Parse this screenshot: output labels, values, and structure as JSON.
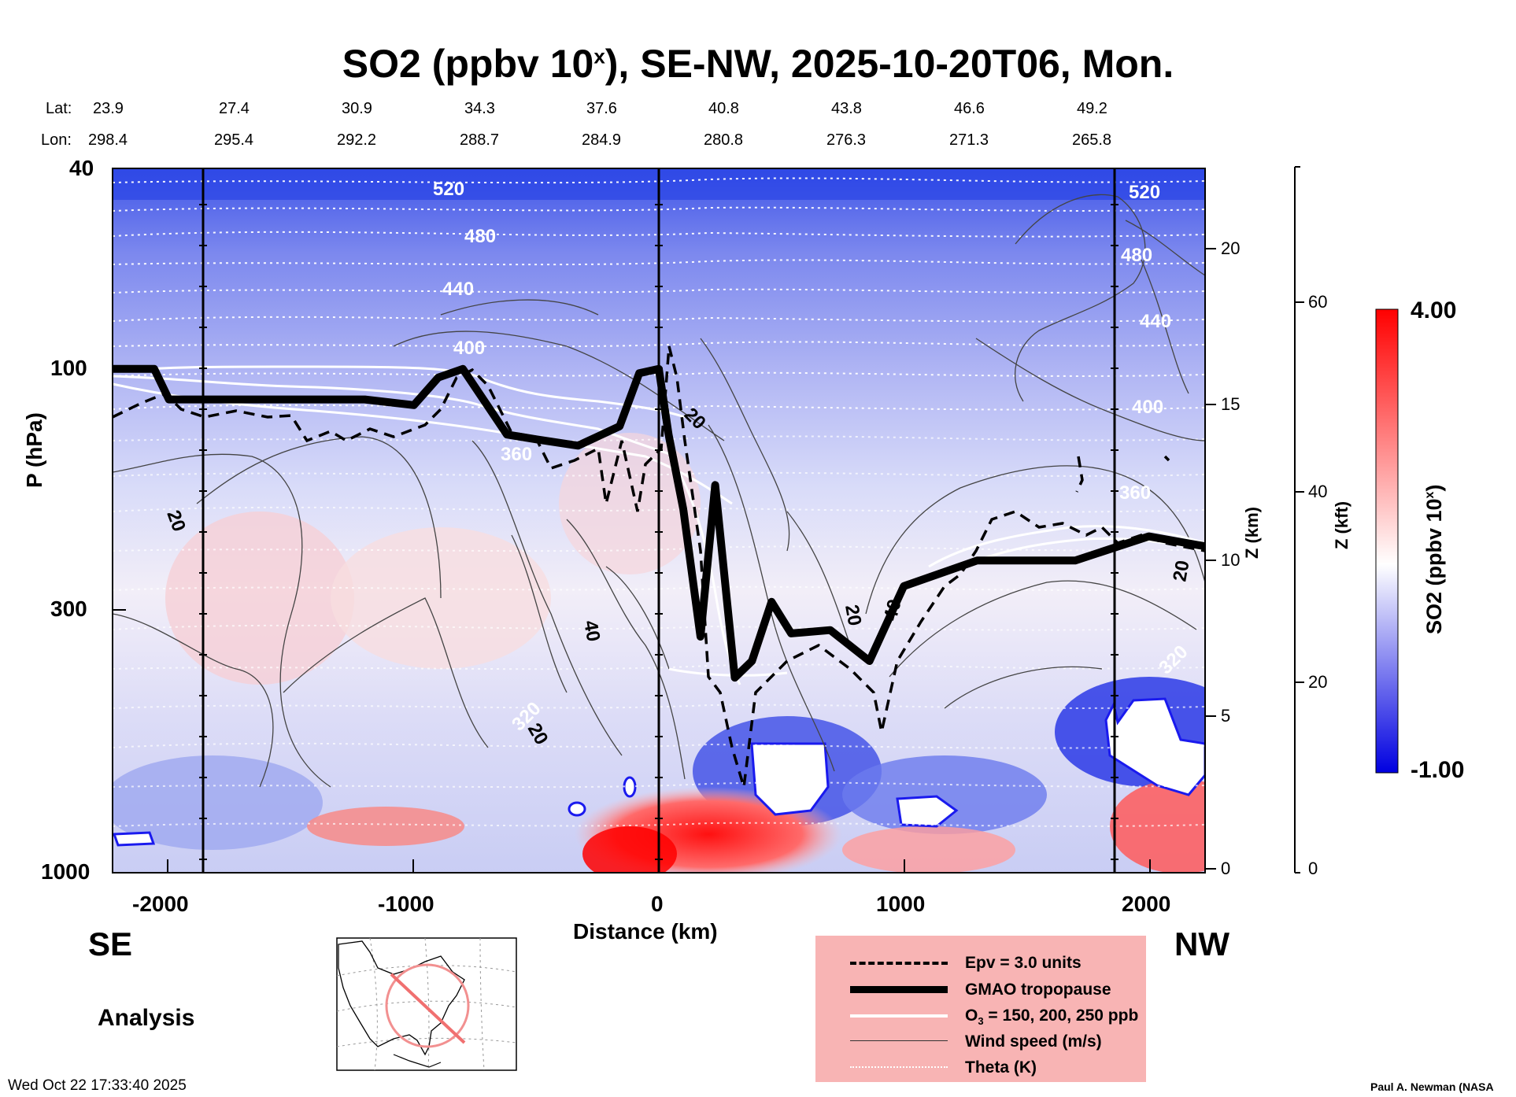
{
  "title": {
    "main": "SO2 (ppbv 10",
    "sup": "x",
    "rest": "), SE-NW, 2025-10-20T06, Mon."
  },
  "header": {
    "lat_label": "Lat:",
    "lon_label": "Lon:",
    "lats": [
      "23.9",
      "27.4",
      "30.9",
      "34.3",
      "37.6",
      "40.8",
      "43.8",
      "46.6",
      "49.2"
    ],
    "lons": [
      "298.4",
      "295.4",
      "292.2",
      "288.7",
      "284.9",
      "280.8",
      "276.3",
      "271.3",
      "265.8"
    ]
  },
  "axes": {
    "x_label": "Distance (km)",
    "x_ticks": [
      "-2000",
      "-1000",
      "0",
      "1000",
      "2000"
    ],
    "y_label": "P (hPa)",
    "y_ticks": [
      "40",
      "100",
      "300",
      "1000"
    ],
    "z_km_label": "Z (km)",
    "z_km_ticks": [
      "20",
      "15",
      "10",
      "5",
      "0"
    ],
    "z_kft_label": "Z (kft)",
    "z_kft_ticks": [
      "60",
      "40",
      "20",
      "0"
    ]
  },
  "colorbar": {
    "label_main": "SO2 (ppbv 10",
    "label_sup": "x",
    "label_end": ")",
    "max": "4.00",
    "min": "-1.00",
    "colors": [
      "#0000e0",
      "#ffffff",
      "#ff0000"
    ]
  },
  "contour_labels": {
    "theta": [
      "520",
      "480",
      "440",
      "400",
      "360",
      "320",
      "520",
      "480",
      "440",
      "400",
      "360",
      "320"
    ],
    "wind": [
      "20",
      "20",
      "40",
      "20",
      "20",
      "40",
      "20"
    ]
  },
  "corner": {
    "left": "SE",
    "right": "NW",
    "mode": "Analysis",
    "timestamp": "Wed Oct 22 17:33:40 2025",
    "credit": "Paul A. Newman (NASA"
  },
  "legend": {
    "items": [
      {
        "label": "Epv = 3.0 units",
        "style": "dashed"
      },
      {
        "label": "GMAO tropopause",
        "style": "thick"
      },
      {
        "label": "O",
        "sub": "3",
        "rest": " = 150, 200, 250 ppb",
        "style": "white"
      },
      {
        "label": "Wind speed (m/s)",
        "style": "thin"
      },
      {
        "label": "Theta (K)",
        "style": "dotted"
      }
    ]
  },
  "chart_data": {
    "type": "heatmap",
    "title": "SO2 (ppbv 10^x), SE-NW, 2025-10-20T06, Mon.",
    "xlabel": "Distance (km)",
    "ylabel": "P (hPa)",
    "xlim": [
      -2230,
      2230
    ],
    "ylim_hpa": [
      1000,
      40
    ],
    "y_scale": "log",
    "colorbar_range": [
      -1.0,
      4.0
    ],
    "tropopause_hpa": {
      "x": [
        -2230,
        -2060,
        -2000,
        -1800,
        -1500,
        -1200,
        -1000,
        -900,
        -800,
        -620,
        -500,
        -330,
        -160,
        -80,
        0,
        40,
        100,
        170,
        230,
        310,
        380,
        460,
        540,
        700,
        860,
        1000,
        1300,
        1700,
        2000,
        2230
      ],
      "p": [
        100,
        100,
        115,
        115,
        115,
        115,
        118,
        104,
        100,
        135,
        138,
        142,
        130,
        102,
        100,
        135,
        190,
        340,
        170,
        410,
        380,
        290,
        335,
        330,
        380,
        270,
        240,
        240,
        215,
        225
      ]
    },
    "theta_levels": [
      "520",
      "480",
      "440",
      "400",
      "360",
      "320"
    ]
  }
}
